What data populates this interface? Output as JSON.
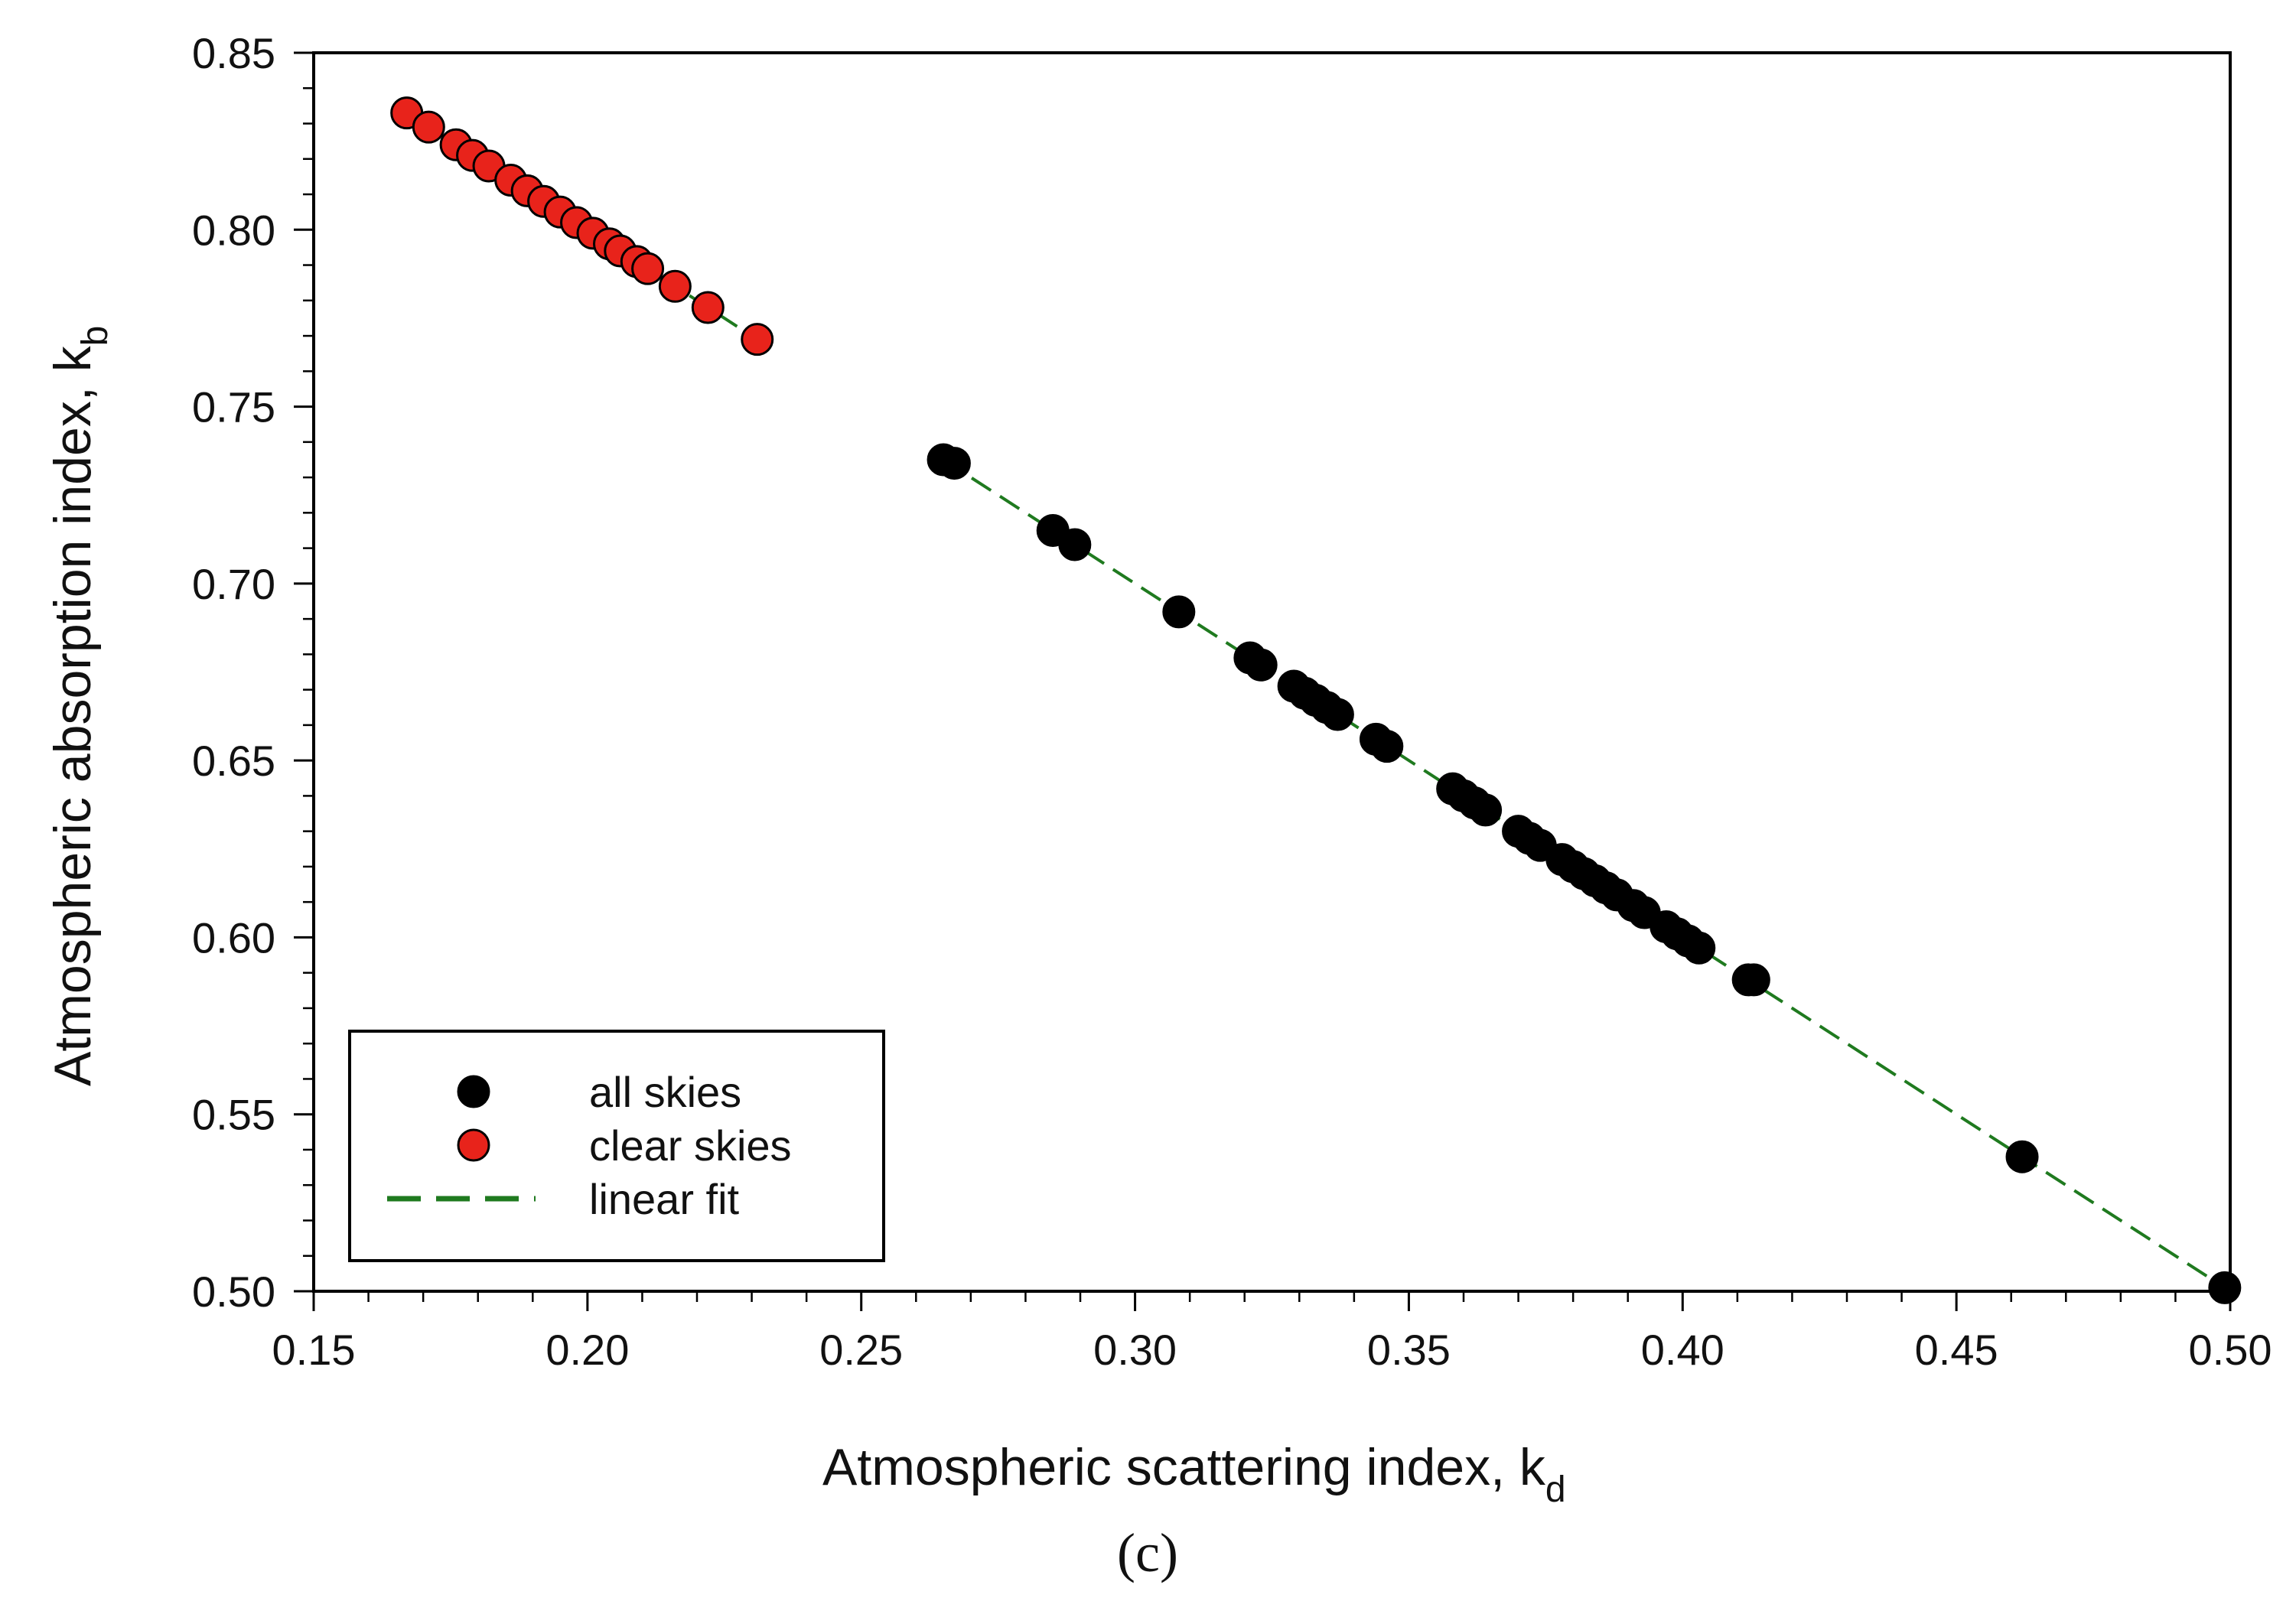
{
  "chart_data": {
    "type": "scatter",
    "xlabel": "Atmospheric scattering index, k",
    "xlabel_sub": "d",
    "ylabel": "Atmospheric absorption index, k",
    "ylabel_sub": "b",
    "panel_label": "(c)",
    "xlim": [
      0.15,
      0.5
    ],
    "ylim": [
      0.5,
      0.85
    ],
    "x_ticks": [
      "0.15",
      "0.20",
      "0.25",
      "0.30",
      "0.35",
      "0.40",
      "0.45",
      "0.50"
    ],
    "y_ticks": [
      "0.50",
      "0.55",
      "0.60",
      "0.65",
      "0.70",
      "0.75",
      "0.80",
      "0.85"
    ],
    "grid": false,
    "legend_position": "bottom-left",
    "legend": [
      {
        "label": "all skies",
        "marker": "circle",
        "color": "#000000"
      },
      {
        "label": "clear skies",
        "marker": "circle",
        "color": "#e8231b"
      },
      {
        "label": "linear fit",
        "marker": "dashed-line",
        "color": "#1f7a1f"
      }
    ],
    "series": [
      {
        "name": "all skies",
        "color": "#000000",
        "points": [
          [
            0.265,
            0.735
          ],
          [
            0.267,
            0.734
          ],
          [
            0.285,
            0.715
          ],
          [
            0.289,
            0.711
          ],
          [
            0.308,
            0.692
          ],
          [
            0.321,
            0.679
          ],
          [
            0.323,
            0.677
          ],
          [
            0.329,
            0.671
          ],
          [
            0.331,
            0.669
          ],
          [
            0.333,
            0.667
          ],
          [
            0.335,
            0.665
          ],
          [
            0.337,
            0.663
          ],
          [
            0.344,
            0.656
          ],
          [
            0.346,
            0.654
          ],
          [
            0.358,
            0.642
          ],
          [
            0.36,
            0.64
          ],
          [
            0.362,
            0.638
          ],
          [
            0.364,
            0.636
          ],
          [
            0.37,
            0.63
          ],
          [
            0.372,
            0.628
          ],
          [
            0.374,
            0.626
          ],
          [
            0.378,
            0.622
          ],
          [
            0.38,
            0.62
          ],
          [
            0.382,
            0.618
          ],
          [
            0.384,
            0.616
          ],
          [
            0.386,
            0.614
          ],
          [
            0.388,
            0.612
          ],
          [
            0.391,
            0.609
          ],
          [
            0.393,
            0.607
          ],
          [
            0.397,
            0.603
          ],
          [
            0.399,
            0.601
          ],
          [
            0.401,
            0.599
          ],
          [
            0.403,
            0.597
          ],
          [
            0.412,
            0.588
          ],
          [
            0.413,
            0.588
          ],
          [
            0.462,
            0.538
          ],
          [
            0.499,
            0.501
          ]
        ]
      },
      {
        "name": "clear skies",
        "color": "#e8231b",
        "points": [
          [
            0.167,
            0.833
          ],
          [
            0.171,
            0.829
          ],
          [
            0.176,
            0.824
          ],
          [
            0.179,
            0.821
          ],
          [
            0.182,
            0.818
          ],
          [
            0.186,
            0.814
          ],
          [
            0.189,
            0.811
          ],
          [
            0.192,
            0.808
          ],
          [
            0.195,
            0.805
          ],
          [
            0.198,
            0.802
          ],
          [
            0.201,
            0.799
          ],
          [
            0.204,
            0.796
          ],
          [
            0.206,
            0.794
          ],
          [
            0.209,
            0.791
          ],
          [
            0.211,
            0.789
          ],
          [
            0.216,
            0.784
          ],
          [
            0.222,
            0.778
          ],
          [
            0.231,
            0.769
          ]
        ]
      },
      {
        "name": "linear fit",
        "color": "#1f7a1f",
        "type": "line",
        "dashed": true,
        "segments": [
          [
            [
              0.167,
              0.833
            ],
            [
              0.231,
              0.769
            ]
          ],
          [
            [
              0.265,
              0.735
            ],
            [
              0.5,
              0.5
            ]
          ]
        ]
      }
    ]
  }
}
